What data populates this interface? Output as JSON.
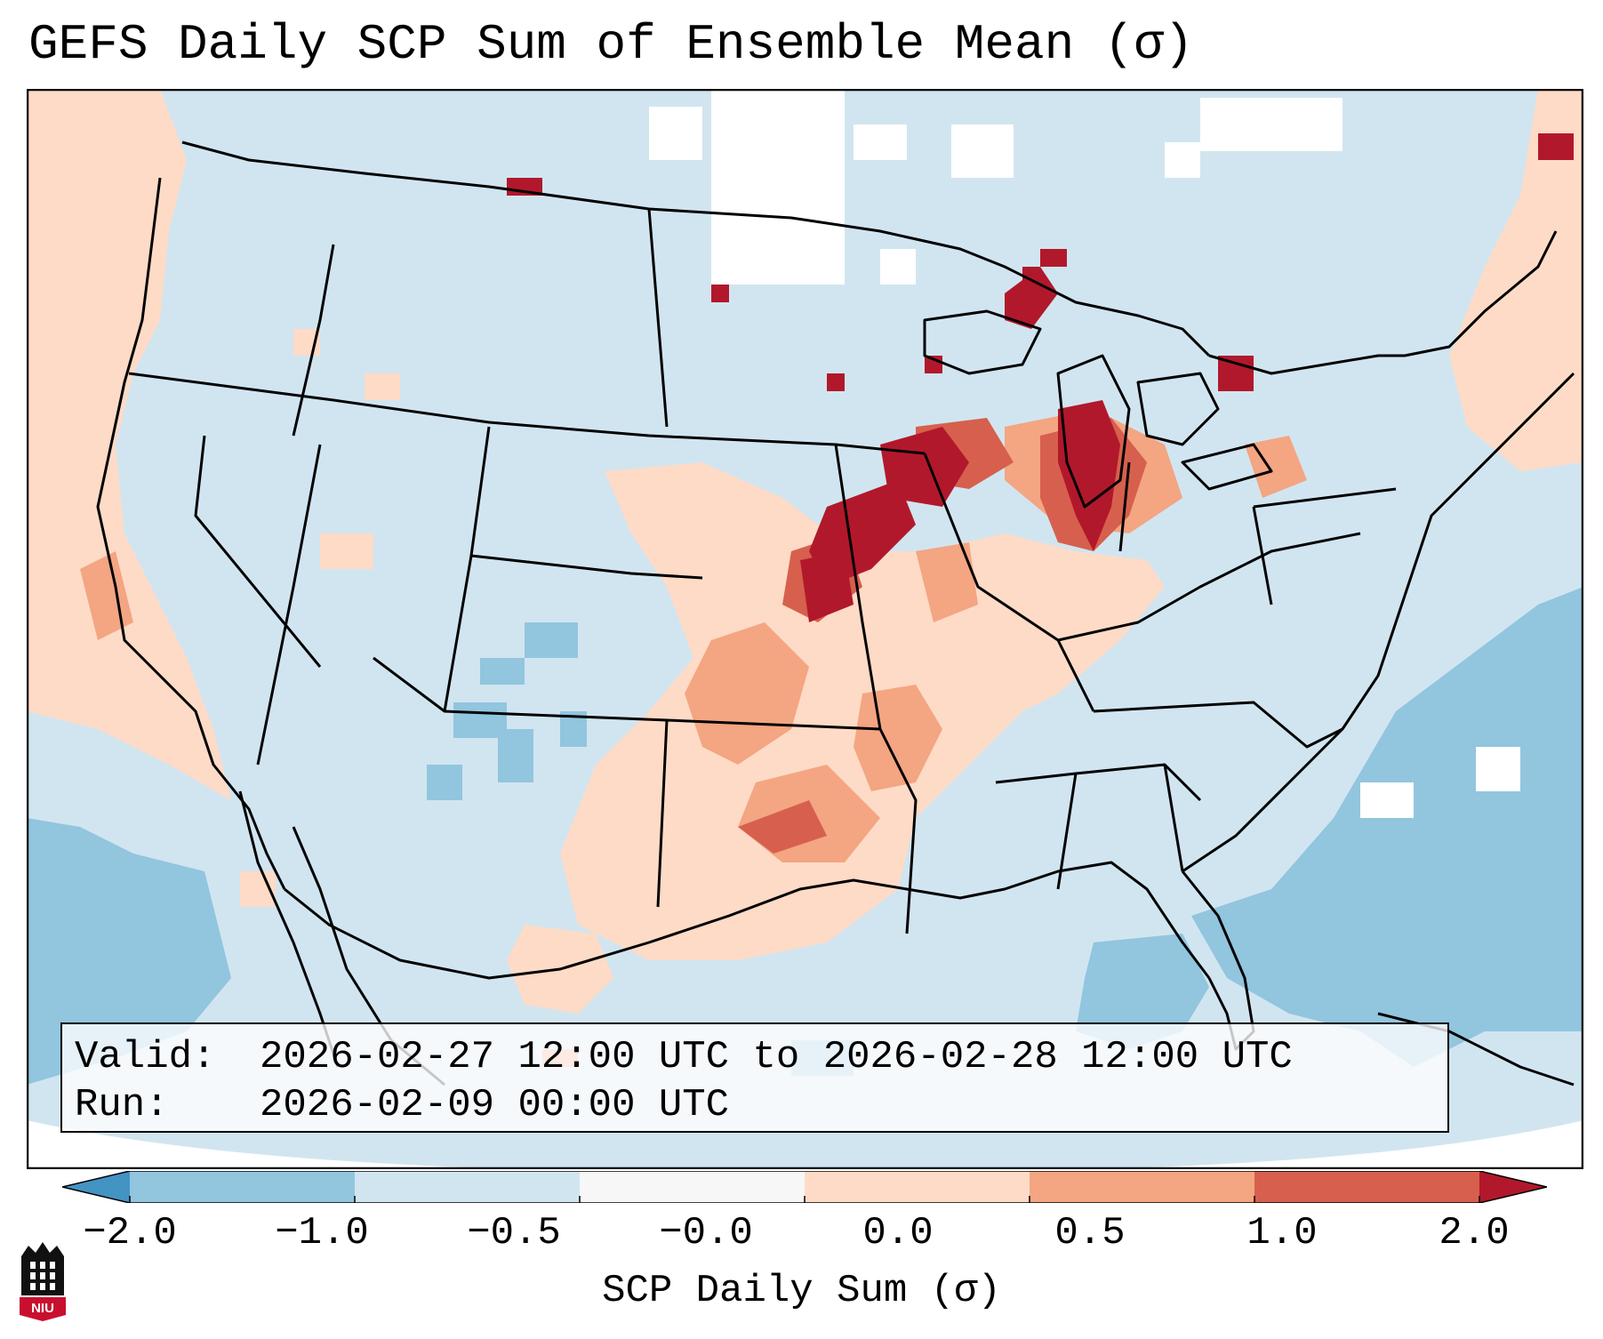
{
  "title": "GEFS Daily SCP Sum of Ensemble Mean (σ)",
  "info": {
    "valid_label": "Valid:",
    "valid_value": "2026-02-27 12:00 UTC to 2026-02-28 12:00 UTC",
    "run_label": "Run:",
    "run_value": "2026-02-09 00:00 UTC"
  },
  "colorbar": {
    "label": "SCP Daily Sum (σ)",
    "ticks": [
      "−2.0",
      "−1.0",
      "−0.5",
      "−0.0",
      "0.0",
      "0.5",
      "1.0",
      "2.0"
    ],
    "colors": [
      "#4393c3",
      "#92c5de",
      "#d1e5f0",
      "#f7f7f7",
      "#fddbc7",
      "#f4a582",
      "#d6604d",
      "#b2182b"
    ],
    "extend": "both"
  },
  "logo": {
    "text": "NIU"
  },
  "field_colors": {
    "background": "#d1e5f0",
    "weak_neg": "#92c5de",
    "neutral": "#ffffff",
    "weak_pos": "#fddbc7",
    "mod_pos": "#f4a582",
    "strong_pos": "#d6604d",
    "very_strong_pos": "#b2182b"
  }
}
